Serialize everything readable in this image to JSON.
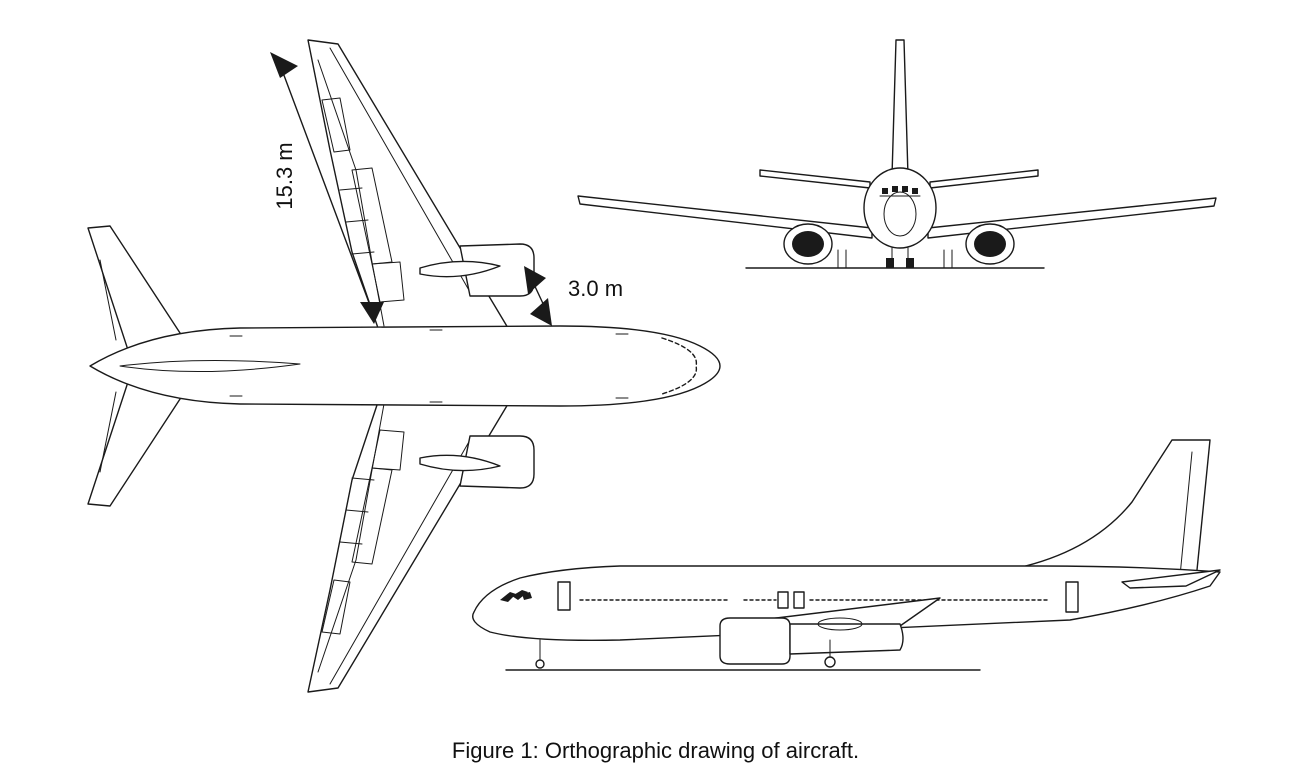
{
  "figure": {
    "caption": "Figure 1: Orthographic drawing of aircraft.",
    "dimensions": {
      "wing_length": "15.3 m",
      "engine_clearance": "3.0 m"
    },
    "views": [
      "top-view",
      "front-view",
      "side-view"
    ]
  }
}
